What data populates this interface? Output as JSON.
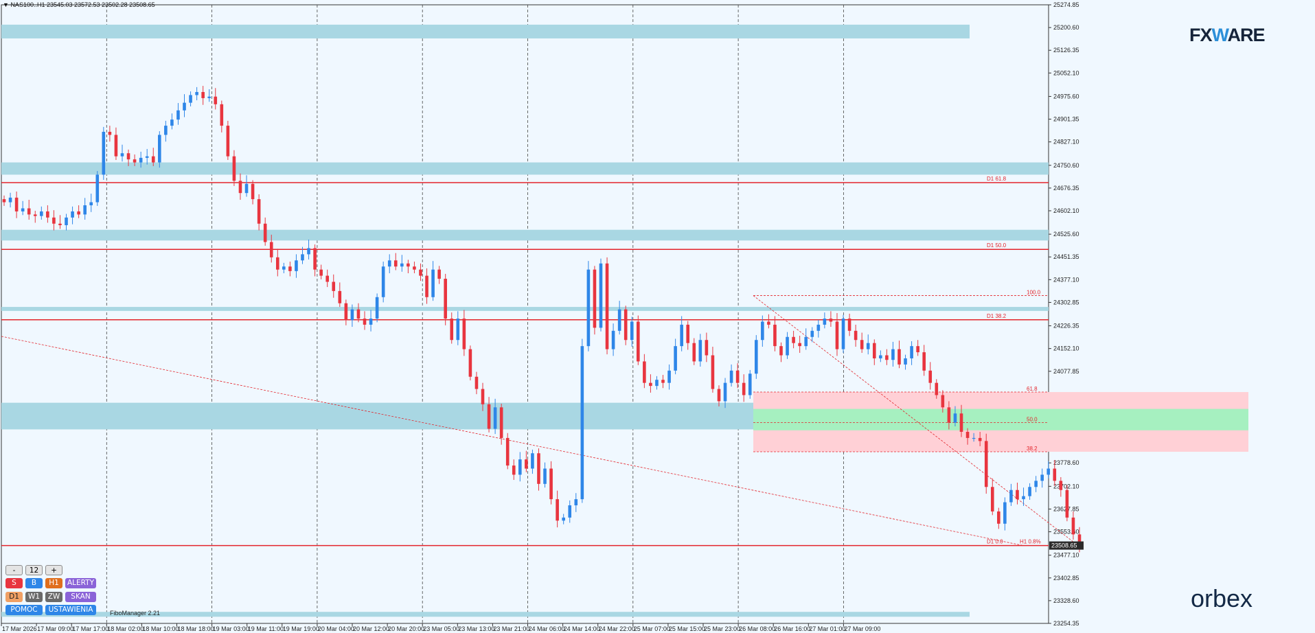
{
  "header": {
    "menu_arrow": "▼",
    "symbol": "NAS100..H1",
    "ohlc": "23545.03 23572.53 23502.28 23508.65"
  },
  "brand": {
    "fxware_pre": "FX",
    "fxware_mid": "W",
    "fxware_post": "ARE",
    "orbex": "orbex"
  },
  "fibo_manager": "FiboManager 2.21",
  "panel": {
    "minus": "-",
    "value": "12",
    "plus": "+",
    "s": "S",
    "b": "B",
    "h1": "H1",
    "alerty": "ALERTY",
    "d1": "D1",
    "w1": "W1",
    "zw": "ZW",
    "skan": "SKAN",
    "pomoc": "POMOC",
    "ustawienia": "USTAWIENIA"
  },
  "colors": {
    "background": "#f0f8ff",
    "bull": "#2e86e8",
    "bear": "#e8353f",
    "zone": "#a9d7e3",
    "level": "#e3242b",
    "fib_pink": "#ffd0d6",
    "fib_green": "#a6f0c0"
  },
  "chart_data": {
    "type": "candlestick",
    "symbol": "NAS100",
    "timeframe": "H1",
    "ylim": [
      23254.35,
      25274.85
    ],
    "y_ticks": [
      "25274.85",
      "25200.60",
      "25126.35",
      "25052.10",
      "24975.60",
      "24901.35",
      "24827.10",
      "24750.60",
      "24676.35",
      "24602.10",
      "24525.60",
      "24451.35",
      "24377.10",
      "24302.85",
      "24226.35",
      "24152.10",
      "24077.85",
      "24001.35",
      "23927.10",
      "23852.85",
      "23778.60",
      "23702.10",
      "23627.85",
      "23553.60",
      "23477.10",
      "23402.85",
      "23328.60",
      "23254.35"
    ],
    "x_ticks": [
      "17 Mar 2026",
      "17 Mar 09:00",
      "17 Mar 17:00",
      "18 Mar 02:00",
      "18 Mar 10:00",
      "18 Mar 18:00",
      "19 Mar 03:00",
      "19 Mar 11:00",
      "19 Mar 19:00",
      "20 Mar 04:00",
      "20 Mar 12:00",
      "20 Mar 20:00",
      "23 Mar 05:00",
      "23 Mar 13:00",
      "23 Mar 21:00",
      "24 Mar 06:00",
      "24 Mar 14:00",
      "24 Mar 22:00",
      "25 Mar 07:00",
      "25 Mar 15:00",
      "25 Mar 23:00",
      "26 Mar 08:00",
      "26 Mar 16:00",
      "27 Mar 01:00",
      "27 Mar 09:00"
    ],
    "current_price": "23508.65",
    "closes": [
      24630,
      24645,
      24600,
      24610,
      24590,
      24585,
      24600,
      24580,
      24560,
      24555,
      24580,
      24600,
      24590,
      24620,
      24630,
      24720,
      24860,
      24850,
      24780,
      24790,
      24770,
      24760,
      24775,
      24780,
      24760,
      24850,
      24880,
      24900,
      24930,
      24955,
      24980,
      24990,
      24970,
      24975,
      24950,
      24880,
      24780,
      24700,
      24660,
      24690,
      24640,
      24560,
      24500,
      24450,
      24410,
      24420,
      24405,
      24440,
      24460,
      24480,
      24410,
      24390,
      24370,
      24340,
      24300,
      24245,
      24280,
      24250,
      24230,
      24250,
      24320,
      24420,
      24440,
      24420,
      24430,
      24420,
      24410,
      24390,
      24320,
      24410,
      24380,
      24250,
      24180,
      24250,
      24150,
      24060,
      24020,
      23970,
      23890,
      23960,
      23860,
      23770,
      23740,
      23790,
      23760,
      23810,
      23710,
      23760,
      23660,
      23590,
      23600,
      23640,
      23660,
      24160,
      24410,
      24220,
      24430,
      24150,
      24210,
      24280,
      24180,
      24240,
      24110,
      24040,
      24030,
      24050,
      24040,
      24080,
      24160,
      24230,
      24170,
      24110,
      24180,
      24130,
      24020,
      23980,
      24040,
      24080,
      24040,
      24000,
      24070,
      24180,
      24240,
      24230,
      24160,
      24130,
      24190,
      24170,
      24160,
      24190,
      24210,
      24230,
      24250,
      24240,
      24150,
      24250,
      24210,
      24180,
      24150,
      24170,
      24120,
      24130,
      24115,
      24150,
      24100,
      24120,
      24160,
      24140,
      24080,
      24040,
      24000,
      23960,
      23910,
      23940,
      23880,
      23860,
      23860,
      23850,
      23700,
      23620,
      23580,
      23650,
      23690,
      23660,
      23670,
      23700,
      23720,
      23740,
      23760,
      23720,
      23690,
      23600,
      23545,
      23508.65
    ],
    "resistance_zones": [
      [
        25210,
        25165
      ],
      [
        24760,
        24720
      ],
      [
        24540,
        24505
      ],
      [
        24288,
        24275
      ],
      [
        23975,
        23888
      ],
      [
        23292,
        23276
      ]
    ],
    "levels": [
      {
        "label": "D1 61.8",
        "price": 24694
      },
      {
        "label": "D1 50.0",
        "price": 24476
      },
      {
        "label": "D1 38.2",
        "price": 24246
      },
      {
        "label": "D1 0.0",
        "price": 23508.65
      }
    ],
    "fib_projection": {
      "levels": [
        {
          "label": "100.0",
          "price": 24325
        },
        {
          "label": "61.8",
          "price": 24010
        },
        {
          "label": "50.0",
          "price": 23910
        },
        {
          "label": "38.2",
          "price": 23815
        }
      ],
      "label_h1": "H1 0.8%"
    },
    "trendline_points": [
      [
        24192
      ],
      [
        23508.65
      ]
    ],
    "grid": true
  }
}
